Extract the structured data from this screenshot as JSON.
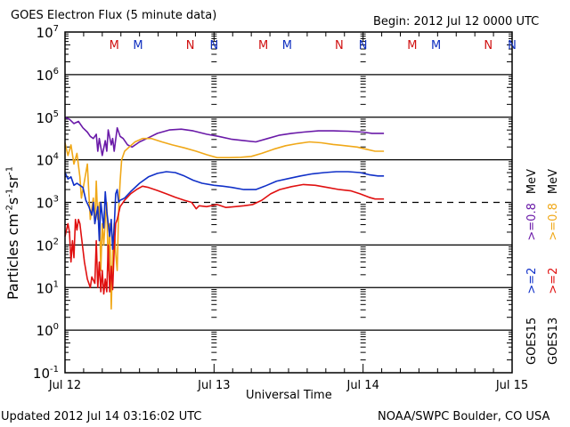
{
  "header": {
    "title": "GOES Electron Flux (5 minute data)",
    "begin": "Begin: 2012 Jul 12 0000 UTC"
  },
  "footer": {
    "updated": "Updated 2012 Jul 14 03:16:02 UTC",
    "credit": "NOAA/SWPC Boulder, CO USA"
  },
  "legend": {
    "goes15": {
      "sat": "GOES15",
      "ch1": ">=2",
      "ch2": ">=0.8",
      "unit": "MeV"
    },
    "goes13": {
      "sat": "GOES13",
      "ch1": ">=2",
      "ch2": ">=0.8",
      "unit": "MeV"
    }
  },
  "chart_data": {
    "type": "line",
    "title": "GOES Electron Flux (5 minute data)",
    "xlabel": "Universal Time",
    "ylabel_parts": {
      "base": "Particles cm",
      "e1": "-2",
      "s": "s",
      "e2": "-1",
      "sr": "sr",
      "e3": "-1"
    },
    "yscale": "log",
    "ylim_log10": [
      -1,
      7
    ],
    "y_ticks": [
      {
        "base": "10",
        "exp": "7"
      },
      {
        "base": "10",
        "exp": "6"
      },
      {
        "base": "10",
        "exp": "5"
      },
      {
        "base": "10",
        "exp": "4"
      },
      {
        "base": "10",
        "exp": "3"
      },
      {
        "base": "10",
        "exp": "2"
      },
      {
        "base": "10",
        "exp": "1"
      },
      {
        "base": "10",
        "exp": "0"
      },
      {
        "base": "10",
        "exp": "-1"
      }
    ],
    "xlim_days": [
      0,
      3
    ],
    "x_ticks": [
      {
        "day": 0,
        "label": "Jul 12"
      },
      {
        "day": 1,
        "label": "Jul 13"
      },
      {
        "day": 2,
        "label": "Jul 14"
      },
      {
        "day": 3,
        "label": "Jul 15"
      }
    ],
    "threshold_log10": 3,
    "grid": "horizontal decade lines",
    "markers": [
      {
        "day": 0.33,
        "label": "M",
        "color": "#d01010"
      },
      {
        "day": 0.49,
        "label": "M",
        "color": "#1030c0"
      },
      {
        "day": 0.84,
        "label": "N",
        "color": "#d01010"
      },
      {
        "day": 1.0,
        "label": "N",
        "color": "#1030c0"
      },
      {
        "day": 1.33,
        "label": "M",
        "color": "#d01010"
      },
      {
        "day": 1.49,
        "label": "M",
        "color": "#1030c0"
      },
      {
        "day": 1.84,
        "label": "N",
        "color": "#d01010"
      },
      {
        "day": 2.0,
        "label": "N",
        "color": "#1030c0"
      },
      {
        "day": 2.33,
        "label": "M",
        "color": "#d01010"
      },
      {
        "day": 2.49,
        "label": "M",
        "color": "#1030c0"
      },
      {
        "day": 2.84,
        "label": "N",
        "color": "#d01010"
      },
      {
        "day": 3.0,
        "label": "N",
        "color": "#1030c0"
      }
    ],
    "series": [
      {
        "name": "GOES15 >=0.8 MeV",
        "color": "#6a1aa8",
        "points": [
          [
            0.0,
            5.0
          ],
          [
            0.03,
            4.95
          ],
          [
            0.06,
            4.85
          ],
          [
            0.09,
            4.9
          ],
          [
            0.12,
            4.75
          ],
          [
            0.15,
            4.65
          ],
          [
            0.17,
            4.55
          ],
          [
            0.19,
            4.5
          ],
          [
            0.21,
            4.6
          ],
          [
            0.22,
            4.2
          ],
          [
            0.23,
            4.5
          ],
          [
            0.25,
            4.1
          ],
          [
            0.27,
            4.45
          ],
          [
            0.28,
            4.2
          ],
          [
            0.29,
            4.7
          ],
          [
            0.31,
            4.35
          ],
          [
            0.32,
            4.5
          ],
          [
            0.33,
            4.2
          ],
          [
            0.35,
            4.75
          ],
          [
            0.37,
            4.55
          ],
          [
            0.39,
            4.5
          ],
          [
            0.42,
            4.35
          ],
          [
            0.45,
            4.3
          ],
          [
            0.5,
            4.42
          ],
          [
            0.55,
            4.5
          ],
          [
            0.62,
            4.62
          ],
          [
            0.7,
            4.7
          ],
          [
            0.78,
            4.72
          ],
          [
            0.86,
            4.68
          ],
          [
            0.95,
            4.6
          ],
          [
            1.03,
            4.55
          ],
          [
            1.12,
            4.48
          ],
          [
            1.2,
            4.45
          ],
          [
            1.28,
            4.42
          ],
          [
            1.36,
            4.5
          ],
          [
            1.44,
            4.58
          ],
          [
            1.52,
            4.62
          ],
          [
            1.6,
            4.65
          ],
          [
            1.7,
            4.68
          ],
          [
            1.8,
            4.68
          ],
          [
            1.9,
            4.67
          ],
          [
            2.0,
            4.65
          ],
          [
            2.06,
            4.62
          ],
          [
            2.14,
            4.62
          ]
        ]
      },
      {
        "name": "GOES13 >=0.8 MeV",
        "color": "#f0a818",
        "points": [
          [
            0.0,
            4.4
          ],
          [
            0.02,
            4.1
          ],
          [
            0.04,
            4.35
          ],
          [
            0.06,
            3.9
          ],
          [
            0.08,
            4.15
          ],
          [
            0.1,
            3.6
          ],
          [
            0.11,
            3.1
          ],
          [
            0.13,
            3.5
          ],
          [
            0.15,
            3.9
          ],
          [
            0.16,
            3.2
          ],
          [
            0.17,
            2.6
          ],
          [
            0.19,
            3.1
          ],
          [
            0.2,
            2.5
          ],
          [
            0.21,
            3.5
          ],
          [
            0.22,
            2.6
          ],
          [
            0.23,
            3.0
          ],
          [
            0.24,
            1.4
          ],
          [
            0.25,
            2.5
          ],
          [
            0.26,
            2.0
          ],
          [
            0.27,
            2.6
          ],
          [
            0.28,
            3.0
          ],
          [
            0.29,
            1.4
          ],
          [
            0.3,
            2.5
          ],
          [
            0.31,
            0.5
          ],
          [
            0.32,
            1.8
          ],
          [
            0.33,
            2.5
          ],
          [
            0.34,
            1.8
          ],
          [
            0.35,
            1.4
          ],
          [
            0.36,
            2.8
          ],
          [
            0.37,
            3.5
          ],
          [
            0.38,
            4.0
          ],
          [
            0.4,
            4.2
          ],
          [
            0.43,
            4.3
          ],
          [
            0.47,
            4.42
          ],
          [
            0.52,
            4.5
          ],
          [
            0.58,
            4.5
          ],
          [
            0.65,
            4.42
          ],
          [
            0.72,
            4.35
          ],
          [
            0.8,
            4.28
          ],
          [
            0.88,
            4.2
          ],
          [
            0.95,
            4.12
          ],
          [
            1.02,
            4.05
          ],
          [
            1.1,
            4.05
          ],
          [
            1.18,
            4.06
          ],
          [
            1.25,
            4.08
          ],
          [
            1.32,
            4.15
          ],
          [
            1.4,
            4.25
          ],
          [
            1.48,
            4.33
          ],
          [
            1.56,
            4.38
          ],
          [
            1.64,
            4.42
          ],
          [
            1.72,
            4.4
          ],
          [
            1.8,
            4.36
          ],
          [
            1.88,
            4.33
          ],
          [
            1.96,
            4.3
          ],
          [
            2.02,
            4.25
          ],
          [
            2.08,
            4.2
          ],
          [
            2.14,
            4.2
          ]
        ]
      },
      {
        "name": "GOES15 >=2 MeV",
        "color": "#1030c8",
        "points": [
          [
            0.0,
            3.7
          ],
          [
            0.02,
            3.55
          ],
          [
            0.04,
            3.6
          ],
          [
            0.06,
            3.4
          ],
          [
            0.08,
            3.45
          ],
          [
            0.1,
            3.4
          ],
          [
            0.12,
            3.35
          ],
          [
            0.14,
            3.05
          ],
          [
            0.16,
            2.9
          ],
          [
            0.18,
            2.7
          ],
          [
            0.19,
            3.0
          ],
          [
            0.2,
            2.5
          ],
          [
            0.22,
            2.9
          ],
          [
            0.23,
            2.1
          ],
          [
            0.24,
            3.0
          ],
          [
            0.26,
            2.4
          ],
          [
            0.27,
            3.25
          ],
          [
            0.28,
            2.8
          ],
          [
            0.29,
            2.5
          ],
          [
            0.3,
            2.2
          ],
          [
            0.31,
            2.6
          ],
          [
            0.32,
            1.9
          ],
          [
            0.33,
            2.4
          ],
          [
            0.34,
            3.2
          ],
          [
            0.35,
            3.3
          ],
          [
            0.36,
            3.0
          ],
          [
            0.37,
            3.05
          ],
          [
            0.4,
            3.1
          ],
          [
            0.44,
            3.25
          ],
          [
            0.5,
            3.45
          ],
          [
            0.56,
            3.6
          ],
          [
            0.62,
            3.68
          ],
          [
            0.68,
            3.72
          ],
          [
            0.74,
            3.7
          ],
          [
            0.8,
            3.62
          ],
          [
            0.86,
            3.52
          ],
          [
            0.92,
            3.45
          ],
          [
            1.0,
            3.4
          ],
          [
            1.06,
            3.38
          ],
          [
            1.12,
            3.35
          ],
          [
            1.2,
            3.3
          ],
          [
            1.28,
            3.3
          ],
          [
            1.34,
            3.38
          ],
          [
            1.42,
            3.5
          ],
          [
            1.5,
            3.56
          ],
          [
            1.58,
            3.62
          ],
          [
            1.66,
            3.67
          ],
          [
            1.74,
            3.7
          ],
          [
            1.82,
            3.72
          ],
          [
            1.9,
            3.72
          ],
          [
            1.98,
            3.7
          ],
          [
            2.04,
            3.65
          ],
          [
            2.1,
            3.62
          ],
          [
            2.14,
            3.62
          ]
        ]
      },
      {
        "name": "GOES13 >=2 MeV",
        "color": "#e01010",
        "points": [
          [
            0.0,
            2.2
          ],
          [
            0.02,
            2.5
          ],
          [
            0.03,
            2.3
          ],
          [
            0.04,
            1.6
          ],
          [
            0.05,
            2.1
          ],
          [
            0.06,
            1.7
          ],
          [
            0.07,
            2.6
          ],
          [
            0.08,
            2.35
          ],
          [
            0.09,
            2.6
          ],
          [
            0.1,
            2.5
          ],
          [
            0.11,
            2.2
          ],
          [
            0.13,
            1.6
          ],
          [
            0.15,
            1.2
          ],
          [
            0.17,
            1.0
          ],
          [
            0.18,
            1.25
          ],
          [
            0.2,
            1.1
          ],
          [
            0.21,
            2.1
          ],
          [
            0.22,
            1.0
          ],
          [
            0.23,
            1.6
          ],
          [
            0.24,
            0.9
          ],
          [
            0.25,
            1.4
          ],
          [
            0.26,
            0.85
          ],
          [
            0.27,
            1.2
          ],
          [
            0.28,
            0.9
          ],
          [
            0.29,
            2.0
          ],
          [
            0.3,
            0.9
          ],
          [
            0.31,
            1.5
          ],
          [
            0.32,
            0.95
          ],
          [
            0.33,
            1.9
          ],
          [
            0.34,
            2.5
          ],
          [
            0.35,
            2.6
          ],
          [
            0.37,
            2.9
          ],
          [
            0.4,
            3.05
          ],
          [
            0.44,
            3.2
          ],
          [
            0.48,
            3.3
          ],
          [
            0.52,
            3.38
          ],
          [
            0.56,
            3.35
          ],
          [
            0.62,
            3.28
          ],
          [
            0.68,
            3.2
          ],
          [
            0.74,
            3.12
          ],
          [
            0.8,
            3.05
          ],
          [
            0.85,
            3.0
          ],
          [
            0.88,
            2.85
          ],
          [
            0.9,
            2.92
          ],
          [
            0.95,
            2.9
          ],
          [
            1.02,
            2.95
          ],
          [
            1.08,
            2.88
          ],
          [
            1.14,
            2.9
          ],
          [
            1.2,
            2.92
          ],
          [
            1.26,
            2.95
          ],
          [
            1.32,
            3.05
          ],
          [
            1.38,
            3.2
          ],
          [
            1.44,
            3.3
          ],
          [
            1.52,
            3.37
          ],
          [
            1.6,
            3.42
          ],
          [
            1.68,
            3.4
          ],
          [
            1.76,
            3.35
          ],
          [
            1.84,
            3.3
          ],
          [
            1.92,
            3.27
          ],
          [
            1.98,
            3.2
          ],
          [
            2.04,
            3.12
          ],
          [
            2.08,
            3.08
          ],
          [
            2.14,
            3.08
          ]
        ]
      }
    ]
  }
}
